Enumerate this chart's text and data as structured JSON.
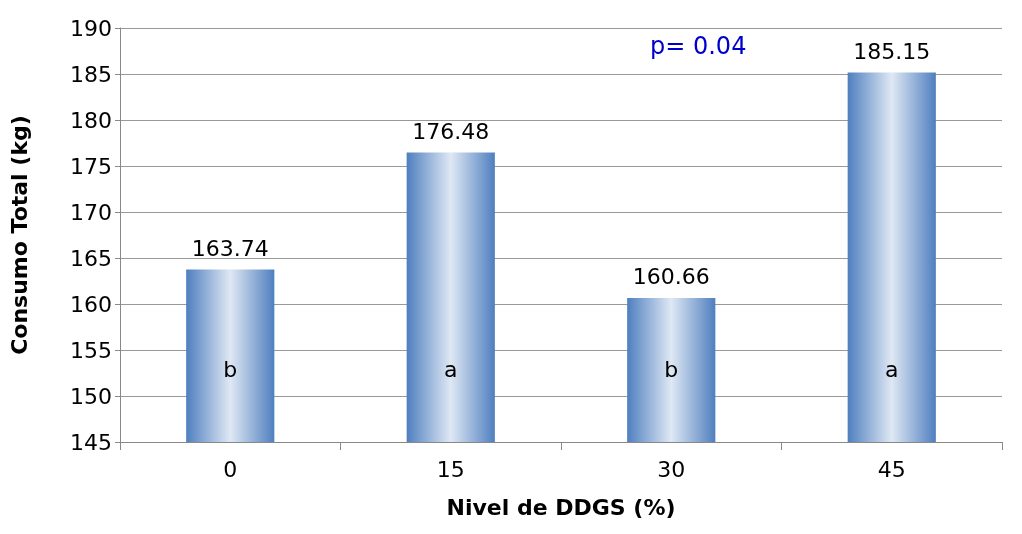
{
  "chart_data": {
    "type": "bar",
    "xlabel": "Nivel de DDGS (%)",
    "ylabel": "Consumo Total (kg)",
    "categories": [
      "0",
      "15",
      "30",
      "45"
    ],
    "values": [
      163.74,
      176.48,
      160.66,
      185.15
    ],
    "color": "#4f7fbf",
    "ylim": [
      145,
      190
    ],
    "yticks": [
      145,
      150,
      155,
      160,
      165,
      170,
      175,
      180,
      185,
      190
    ],
    "grid": "y",
    "data_labels": true,
    "annotations": [
      "p= 0.04",
      "b",
      "a",
      "b",
      "a"
    ]
  }
}
